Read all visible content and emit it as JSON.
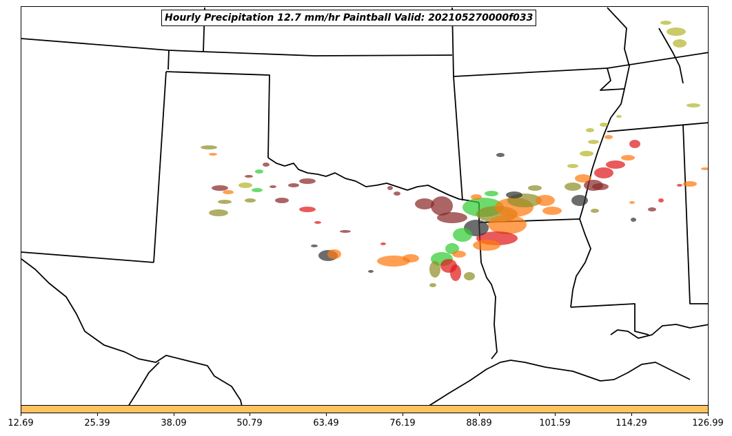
{
  "title": "Hourly Precipitation 12.7 mm/hr Paintball Valid: 202105270000f033",
  "colorbar": {
    "color": "#fcc35f",
    "ticks": [
      "12.69",
      "25.39",
      "38.09",
      "50.79",
      "63.49",
      "76.19",
      "88.89",
      "101.59",
      "114.29",
      "126.99"
    ]
  },
  "colors": {
    "state_borders": "#000000",
    "paint_dark_red": "#8b2a2a",
    "paint_red": "#e01a1a",
    "paint_orange": "#ff7a10",
    "paint_green": "#33cc33",
    "paint_olive": "#8f8f2a",
    "paint_yellow_olive": "#b5b52e",
    "paint_black": "#333333"
  }
}
